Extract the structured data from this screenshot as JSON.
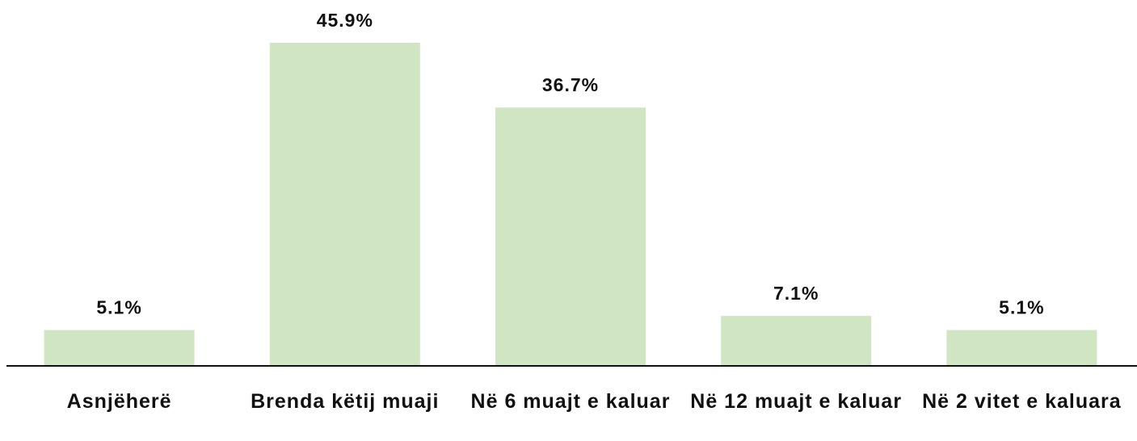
{
  "chart_data": {
    "type": "bar",
    "categories": [
      "Asnjëherë",
      "Brenda këtij muaji",
      "Në 6 muajt e kaluar",
      "Në 12 muajt e kaluar",
      "Në 2 vitet e kaluara"
    ],
    "values": [
      5.1,
      45.9,
      36.7,
      7.1,
      5.1
    ],
    "value_labels": [
      "5.1%",
      "45.9%",
      "36.7%",
      "7.1%",
      "5.1%"
    ],
    "color": "#d0e6c2"
  }
}
